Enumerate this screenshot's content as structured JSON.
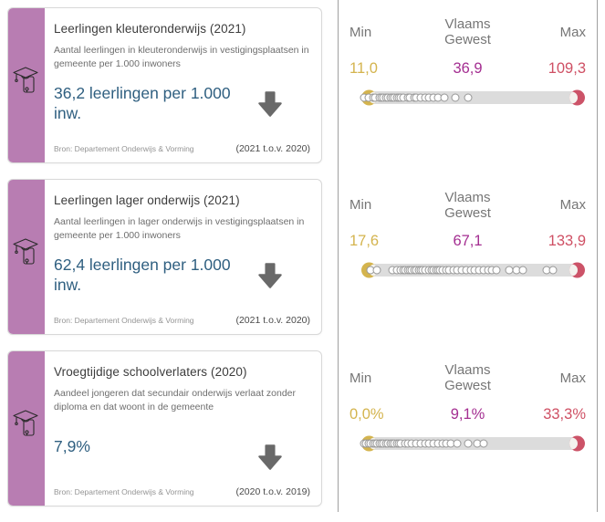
{
  "palette": {
    "card_stripe": "#b87db2",
    "value_text": "#2f5f80",
    "min_color": "#d4b44e",
    "vlaams_gewest_color": "#a42e91",
    "max_color": "#cf5064",
    "arrow_color": "#696969",
    "track_color": "#dcdcdc"
  },
  "cards": [
    {
      "title": "Leerlingen kleuteronderwijs (2021)",
      "description": "Aantal leerlingen in kleuteronderwijs in vestigingsplaatsen in gemeente per 1.000 inwoners",
      "value": "36,2 leerlingen per 1.000 inw.",
      "trend": "down",
      "trend_label": "(2021 t.o.v. 2020)",
      "source": "Bron: Departement Onderwijs & Vorming"
    },
    {
      "title": "Leerlingen lager onderwijs (2021)",
      "description": "Aantal leerlingen in lager onderwijs in vestigingsplaatsen in gemeente per 1.000 inwoners",
      "value": "62,4 leerlingen per 1.000 inw.",
      "trend": "down",
      "trend_label": "(2021 t.o.v. 2020)",
      "source": "Bron: Departement Onderwijs & Vorming"
    },
    {
      "title": "Vroegtijdige schoolverlaters (2020)",
      "description": "Aandeel jongeren dat secundair onderwijs verlaat zonder diploma en dat woont in de gemeente",
      "value": "7,9%",
      "trend": "down",
      "trend_label": "(2020 t.o.v. 2019)",
      "source": "Bron: Departement Onderwijs & Vorming"
    }
  ],
  "strips": [
    {
      "min_label": "Min",
      "vg_label": "Vlaams Gewest",
      "max_label": "Max",
      "min": "11,0",
      "vlaams_gewest": "36,9",
      "max": "109,3",
      "dots_pct": [
        0,
        2,
        4,
        5,
        7,
        8,
        9,
        10,
        11,
        12,
        13,
        14,
        15,
        16,
        17,
        18,
        20,
        21,
        23,
        24,
        26,
        28,
        30,
        32,
        34,
        37,
        42,
        48
      ]
    },
    {
      "min_label": "Min",
      "vg_label": "Vlaams Gewest",
      "max_label": "Max",
      "min": "17,6",
      "vlaams_gewest": "67,1",
      "max": "133,9",
      "dots_pct": [
        3,
        6,
        13,
        15,
        17,
        18,
        19,
        20,
        21,
        22,
        23,
        24,
        25,
        26,
        27,
        28,
        30,
        31,
        32,
        33,
        34,
        35,
        36,
        38,
        39,
        41,
        43,
        45,
        47,
        49,
        51,
        53,
        55,
        57,
        59,
        61,
        67,
        70,
        73,
        84,
        87
      ]
    },
    {
      "min_label": "Min",
      "vg_label": "Vlaams Gewest",
      "max_label": "Max",
      "min": "0,0%",
      "vlaams_gewest": "9,1%",
      "max": "33,3%",
      "dots_pct": [
        0,
        1,
        2,
        3,
        4,
        5,
        6,
        7,
        8,
        9,
        10,
        11,
        12,
        13,
        14,
        15,
        16,
        17,
        19,
        20,
        22,
        24,
        26,
        28,
        30,
        32,
        34,
        36,
        38,
        40,
        43,
        48,
        52,
        55
      ]
    }
  ]
}
